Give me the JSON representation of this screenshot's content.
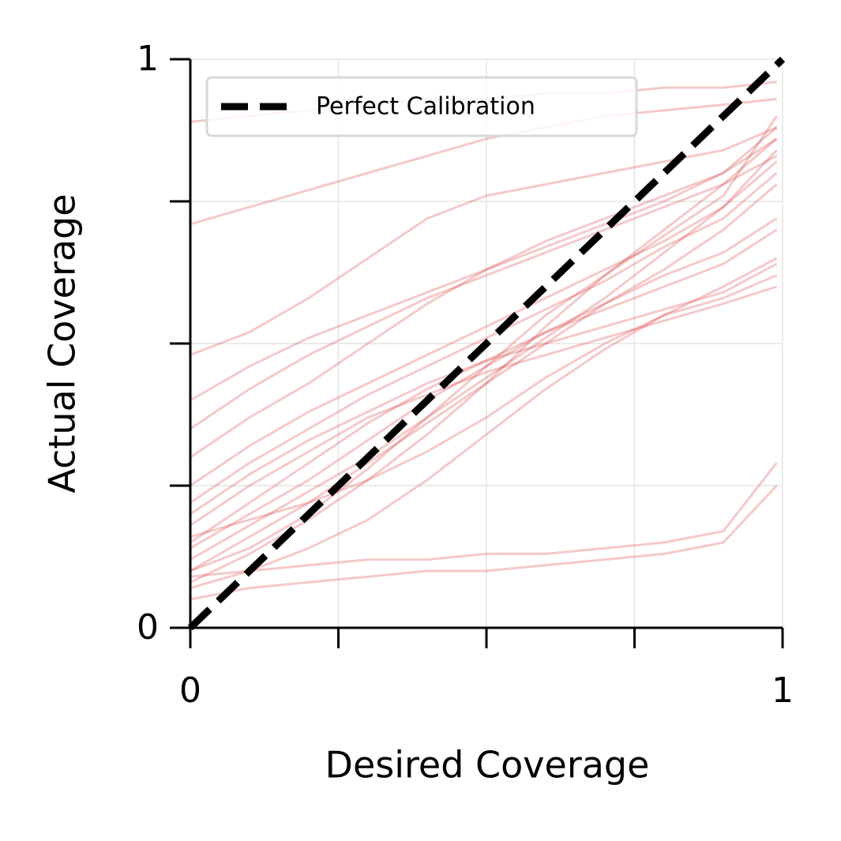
{
  "chart_data": {
    "type": "line",
    "xlabel": "Desired Coverage",
    "ylabel": "Actual Coverage",
    "xlim": [
      0,
      1
    ],
    "ylim": [
      0,
      1
    ],
    "xticks": [
      0,
      {
        "value": 0.25,
        "label": null
      },
      {
        "value": 0.5,
        "label": null
      },
      {
        "value": 0.75,
        "label": null
      },
      1
    ],
    "yticks": [
      0,
      {
        "value": 0.25,
        "label": null
      },
      {
        "value": 0.5,
        "label": null
      },
      {
        "value": 0.75,
        "label": null
      },
      1
    ],
    "grid": true,
    "legend": "upper left",
    "alpha": 0.25,
    "x": [
      0,
      0.1,
      0.2,
      0.3,
      0.4,
      0.5,
      0.6,
      0.7,
      0.8,
      0.9,
      0.99
    ],
    "series": [
      {
        "color": "#d62728",
        "values": [
          0.1,
          0.16,
          0.22,
          0.29,
          0.36,
          0.43,
          0.5,
          0.57,
          0.63,
          0.7,
          0.78
        ]
      },
      {
        "color": "#d62728",
        "values": [
          0.15,
          0.22,
          0.29,
          0.36,
          0.42,
          0.47,
          0.52,
          0.56,
          0.6,
          0.64,
          0.7
        ]
      },
      {
        "color": "#d62728",
        "values": [
          0.2,
          0.27,
          0.33,
          0.38,
          0.43,
          0.47,
          0.5,
          0.53,
          0.56,
          0.59,
          0.64
        ]
      },
      {
        "color": "#d62728",
        "values": [
          0.08,
          0.13,
          0.19,
          0.26,
          0.34,
          0.43,
          0.53,
          0.62,
          0.7,
          0.78,
          0.86
        ]
      },
      {
        "color": "#d62728",
        "values": [
          0.25,
          0.32,
          0.38,
          0.43,
          0.48,
          0.53,
          0.58,
          0.63,
          0.68,
          0.74,
          0.82
        ]
      },
      {
        "color": "#d62728",
        "values": [
          0.12,
          0.18,
          0.24,
          0.3,
          0.37,
          0.44,
          0.51,
          0.58,
          0.66,
          0.74,
          0.84
        ]
      },
      {
        "color": "#d62728",
        "values": [
          0.35,
          0.42,
          0.48,
          0.53,
          0.58,
          0.62,
          0.66,
          0.7,
          0.74,
          0.78,
          0.83
        ]
      },
      {
        "color": "#d62728",
        "values": [
          0.48,
          0.52,
          0.58,
          0.65,
          0.72,
          0.76,
          0.78,
          0.8,
          0.82,
          0.84,
          0.88
        ]
      },
      {
        "color": "#d62728",
        "values": [
          0.07,
          0.1,
          0.14,
          0.19,
          0.26,
          0.34,
          0.42,
          0.49,
          0.55,
          0.6,
          0.65
        ]
      },
      {
        "color": "#d62728",
        "values": [
          0.05,
          0.07,
          0.08,
          0.09,
          0.1,
          0.1,
          0.11,
          0.12,
          0.13,
          0.15,
          0.25
        ]
      },
      {
        "color": "#d62728",
        "values": [
          0.09,
          0.1,
          0.11,
          0.12,
          0.12,
          0.13,
          0.13,
          0.14,
          0.15,
          0.17,
          0.29
        ]
      },
      {
        "color": "#d62728",
        "values": [
          0.89,
          0.9,
          0.91,
          0.92,
          0.93,
          0.93,
          0.94,
          0.94,
          0.95,
          0.95,
          0.96
        ]
      },
      {
        "color": "#d62728",
        "values": [
          0.71,
          0.74,
          0.77,
          0.8,
          0.83,
          0.86,
          0.88,
          0.9,
          0.91,
          0.92,
          0.93
        ]
      },
      {
        "color": "#d62728",
        "values": [
          0.18,
          0.25,
          0.31,
          0.37,
          0.41,
          0.45,
          0.48,
          0.51,
          0.54,
          0.57,
          0.6
        ]
      },
      {
        "color": "#d62728",
        "values": [
          0.14,
          0.2,
          0.26,
          0.33,
          0.4,
          0.46,
          0.52,
          0.57,
          0.62,
          0.66,
          0.72
        ]
      },
      {
        "color": "#d62728",
        "values": [
          0.3,
          0.37,
          0.43,
          0.5,
          0.57,
          0.63,
          0.68,
          0.72,
          0.76,
          0.8,
          0.88
        ]
      },
      {
        "color": "#d62728",
        "values": [
          0.22,
          0.29,
          0.35,
          0.41,
          0.46,
          0.51,
          0.56,
          0.61,
          0.67,
          0.72,
          0.8
        ]
      },
      {
        "color": "#d62728",
        "values": [
          0.1,
          0.14,
          0.2,
          0.28,
          0.37,
          0.46,
          0.55,
          0.62,
          0.69,
          0.76,
          0.9
        ]
      },
      {
        "color": "#d62728",
        "values": [
          0.16,
          0.19,
          0.22,
          0.26,
          0.31,
          0.37,
          0.44,
          0.5,
          0.55,
          0.58,
          0.62
        ]
      },
      {
        "color": "#d62728",
        "values": [
          0.4,
          0.46,
          0.51,
          0.55,
          0.59,
          0.63,
          0.67,
          0.71,
          0.75,
          0.8,
          0.86
        ]
      },
      {
        "name": "Perfect Calibration",
        "color": "#000000",
        "dashed": true,
        "x": [
          0,
          1
        ],
        "values": [
          0,
          1
        ]
      }
    ]
  }
}
